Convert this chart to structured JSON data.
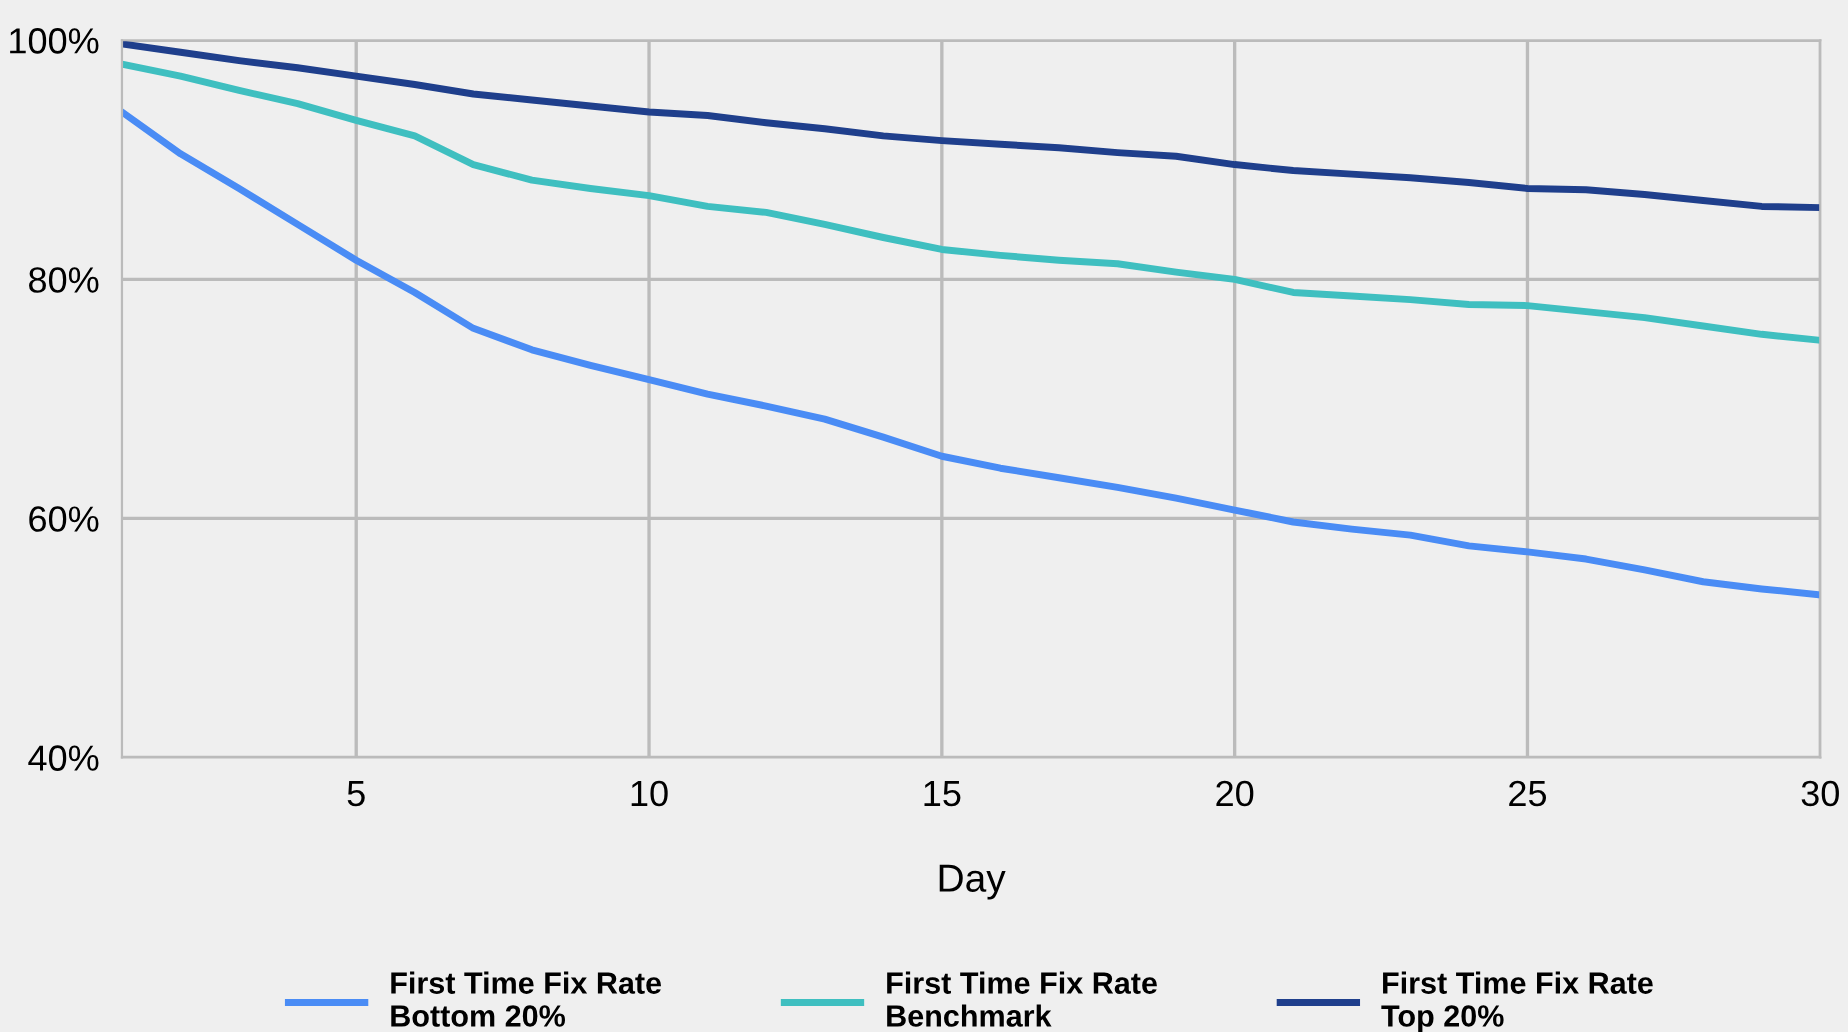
{
  "chart_data": {
    "type": "line",
    "xlabel": "Day",
    "x": [
      1,
      2,
      3,
      4,
      5,
      6,
      7,
      8,
      9,
      10,
      11,
      12,
      13,
      14,
      15,
      16,
      17,
      18,
      19,
      20,
      21,
      22,
      23,
      24,
      25,
      26,
      27,
      28,
      29,
      30
    ],
    "series": [
      {
        "name": "First Time Fix Rate\nBottom 20%",
        "color": "#4a8cf5",
        "values": [
          94.0,
          90.5,
          87.6,
          84.6,
          81.6,
          78.9,
          75.9,
          74.1,
          72.8,
          71.6,
          70.4,
          69.4,
          68.3,
          66.8,
          65.2,
          64.2,
          63.4,
          62.6,
          61.7,
          60.7,
          59.7,
          59.1,
          58.6,
          57.7,
          57.2,
          56.6,
          55.7,
          54.7,
          54.1,
          53.6
        ]
      },
      {
        "name": "First Time Fix Rate\nBenchmark",
        "color": "#3fbfc0",
        "values": [
          98.0,
          97.0,
          95.8,
          94.7,
          93.3,
          92.0,
          89.6,
          88.3,
          87.6,
          87.0,
          86.1,
          85.6,
          84.6,
          83.5,
          82.5,
          82.0,
          81.6,
          81.3,
          80.6,
          80.0,
          78.9,
          78.6,
          78.3,
          77.9,
          77.8,
          77.3,
          76.8,
          76.1,
          75.4,
          74.9
        ]
      },
      {
        "name": "First Time Fix Rate\nTop 20%",
        "color": "#1f3f8c",
        "values": [
          99.7,
          99.0,
          98.3,
          97.7,
          97.0,
          96.3,
          95.5,
          95.0,
          94.5,
          94.0,
          93.7,
          93.1,
          92.6,
          92.0,
          91.6,
          91.3,
          91.0,
          90.6,
          90.3,
          89.6,
          89.1,
          88.8,
          88.5,
          88.1,
          87.6,
          87.5,
          87.1,
          86.6,
          86.1,
          86.0
        ]
      }
    ],
    "xlim": [
      1,
      30
    ],
    "xticks": [
      5,
      10,
      15,
      20,
      25,
      30
    ],
    "ylim": [
      40,
      100
    ],
    "yticks": [
      {
        "value": 40,
        "label": "40%"
      },
      {
        "value": 60,
        "label": "60%"
      },
      {
        "value": 80,
        "label": "80%"
      },
      {
        "value": 100,
        "label": "100%"
      }
    ],
    "grid": true,
    "legend": "bottom",
    "marker": "none",
    "line_style": "solid"
  }
}
